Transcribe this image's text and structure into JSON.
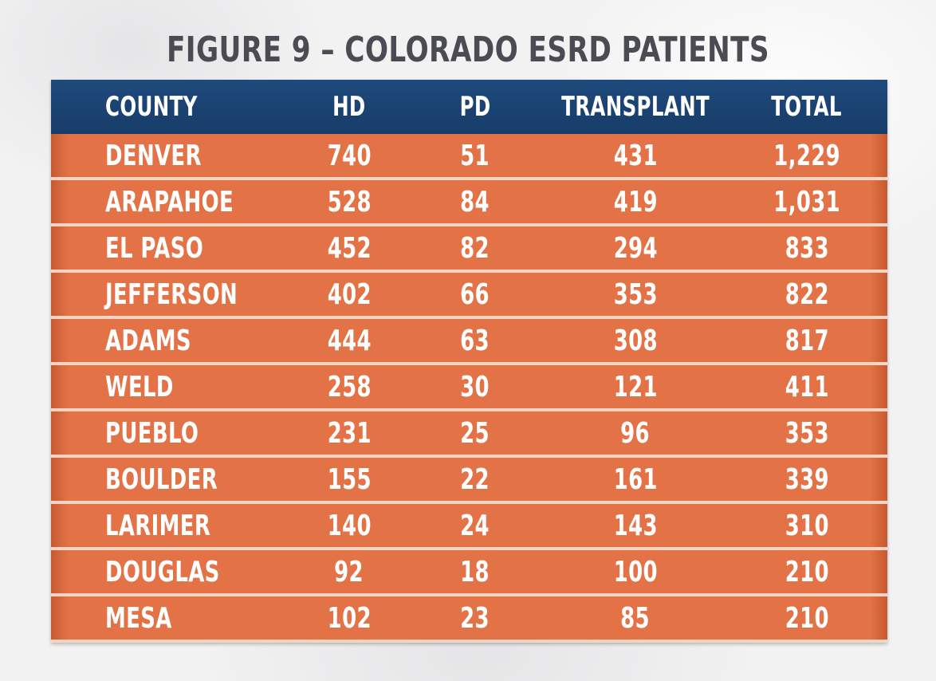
{
  "chart_data": {
    "type": "table",
    "title": "FIGURE 9 – COLORADO ESRD PATIENTS",
    "columns": [
      "COUNTY",
      "HD",
      "PD",
      "TRANSPLANT",
      "TOTAL"
    ],
    "rows": [
      [
        "DENVER",
        "740",
        "51",
        "431",
        "1,229"
      ],
      [
        "ARAPAHOE",
        "528",
        "84",
        "419",
        "1,031"
      ],
      [
        "EL PASO",
        "452",
        "82",
        "294",
        "833"
      ],
      [
        "JEFFERSON",
        "402",
        "66",
        "353",
        "822"
      ],
      [
        "ADAMS",
        "444",
        "63",
        "308",
        "817"
      ],
      [
        "WELD",
        "258",
        "30",
        "121",
        "411"
      ],
      [
        "PUEBLO",
        "231",
        "25",
        "96",
        "353"
      ],
      [
        "BOULDER",
        "155",
        "22",
        "161",
        "339"
      ],
      [
        "LARIMER",
        "140",
        "24",
        "143",
        "310"
      ],
      [
        "DOUGLAS",
        "92",
        "18",
        "100",
        "210"
      ],
      [
        "MESA",
        "102",
        "23",
        "85",
        "210"
      ]
    ],
    "colors": {
      "header": "#1e4a7c",
      "row": "#e37347",
      "separator": "#f3d3c2",
      "title": "#4b4c53",
      "text": "#ffffff"
    }
  }
}
